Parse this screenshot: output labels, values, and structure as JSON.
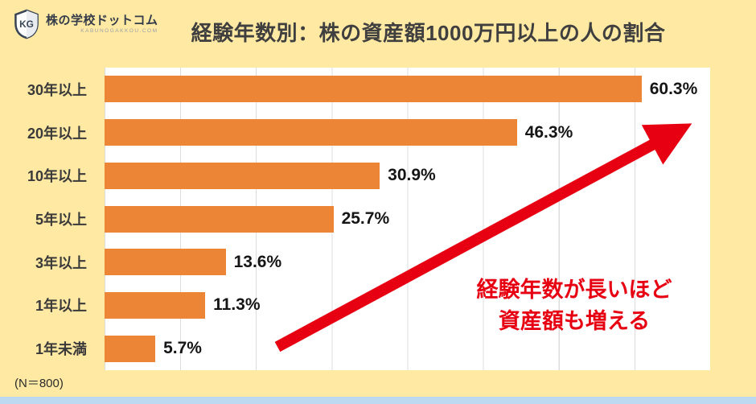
{
  "logo": {
    "brand": "株の学校ドットコム",
    "sub": "KABUNOGAKKOU.COM",
    "icon": "shield-kg-icon"
  },
  "header": {
    "title": "経験年数別：株の資産額1000万円以上の人の割合"
  },
  "chart_data": {
    "type": "bar",
    "orientation": "horizontal",
    "title": "経験年数別：株の資産額1000万円以上の人の割合",
    "categories": [
      "30年以上",
      "20年以上",
      "10年以上",
      "5年以上",
      "3年以上",
      "1年以上",
      "1年未満"
    ],
    "values": [
      60.3,
      46.3,
      30.9,
      25.7,
      13.6,
      11.3,
      5.7
    ],
    "value_labels": [
      "60.3%",
      "46.3%",
      "30.9%",
      "25.7%",
      "13.6%",
      "11.3%",
      "5.7%"
    ],
    "xmax_scale": 68,
    "grid": true,
    "legend": "none",
    "annotation": "経験年数が長いほど 資産額も増える",
    "sample_note": "(N＝800)"
  },
  "annotation": {
    "line1": "経験年数が長いほど",
    "line2": "資産額も増える"
  },
  "footnote": "(N＝800)",
  "colors": {
    "background": "#FFE9A3",
    "bar": "#ED8537",
    "accent_red": "#E60012",
    "grid": "#DCDCDC",
    "bottom_strip": "#BDD9F2",
    "title_text": "#3F3F3F"
  }
}
